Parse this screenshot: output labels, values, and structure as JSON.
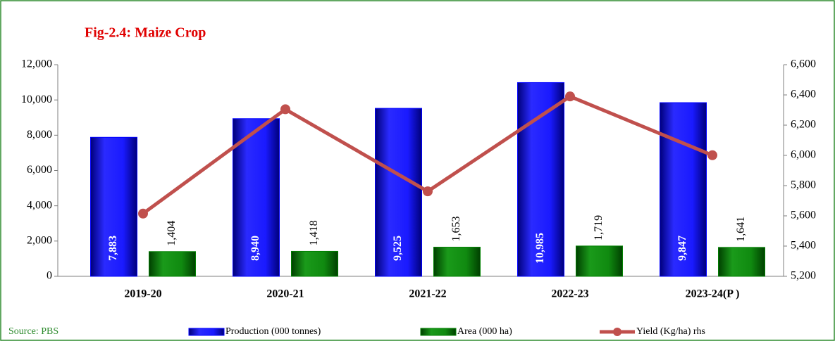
{
  "chart_data": {
    "type": "bar",
    "title": "Fig-2.4: Maize Crop",
    "source": "Source: PBS",
    "categories": [
      "2019-20",
      "2020-21",
      "2021-22",
      "2022-23",
      "2023-24(P )"
    ],
    "series": [
      {
        "name": "Production (000 tonnes)",
        "type": "bar",
        "color": "#0000ff",
        "values": [
          7883,
          8940,
          9525,
          10985,
          9847
        ],
        "value_labels": [
          "7,883",
          "8,940",
          "9,525",
          "10,985",
          "9,847"
        ]
      },
      {
        "name": "Area (000 ha)",
        "type": "bar",
        "color": "#008000",
        "values": [
          1404,
          1418,
          1653,
          1719,
          1641
        ],
        "value_labels": [
          "1,404",
          "1,418",
          "1,653",
          "1,719",
          "1,641"
        ]
      },
      {
        "name": "Yield (Kg/ha) rhs",
        "type": "line",
        "axis": "y2",
        "color": "#c0504d",
        "values": [
          5615,
          6305,
          5762,
          6390,
          6001
        ]
      }
    ],
    "ylim": [
      0,
      12000
    ],
    "yticks": [
      0,
      {
        "value": 2000,
        "label": "2,000"
      },
      {
        "value": 4000,
        "label": "4,000"
      },
      {
        "value": 6000,
        "label": "6,000"
      },
      {
        "value": 8000,
        "label": "8,000"
      },
      {
        "value": 10000,
        "label": "10,000"
      },
      {
        "value": 12000,
        "label": "12,000"
      }
    ],
    "y2lim": [
      5200,
      6600
    ],
    "y2ticks": [
      {
        "value": 5200,
        "label": "5,200"
      },
      {
        "value": 5400,
        "label": "5,400"
      },
      {
        "value": 5600,
        "label": "5,600"
      },
      {
        "value": 5800,
        "label": "5,800"
      },
      {
        "value": 6000,
        "label": "6,000"
      },
      {
        "value": 6200,
        "label": "6,200"
      },
      {
        "value": 6400,
        "label": "6,400"
      },
      {
        "value": 6600,
        "label": "6,600"
      }
    ],
    "grid": false
  }
}
